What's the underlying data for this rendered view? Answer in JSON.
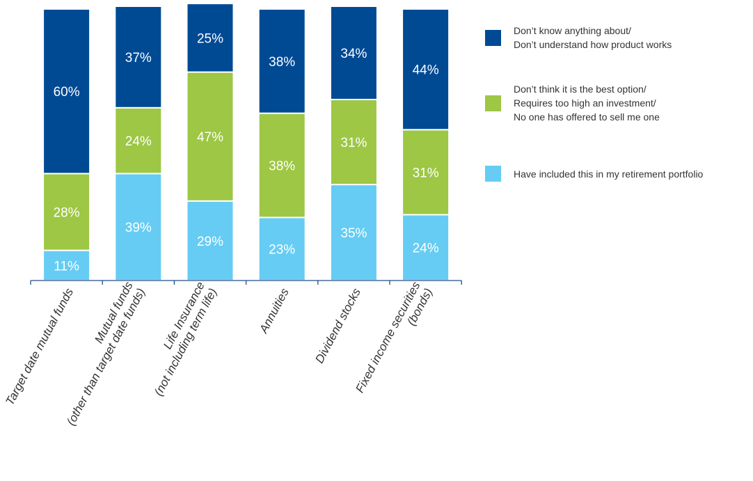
{
  "chart_data": {
    "type": "bar",
    "stacked": true,
    "orientation": "vertical",
    "categories": [
      "Target date mutual funds",
      "Mutual funds\n(other than target date funds)",
      "Life Insurance\n(not including term life)",
      "Annuities",
      "Dividend stocks",
      "Fixed income securities\n(bonds)"
    ],
    "series": [
      {
        "name": "Have included this in my retirement portfolio",
        "color": "#66ccf3",
        "values": [
          11,
          39,
          29,
          23,
          35,
          24
        ],
        "labels": [
          "11%",
          "39%",
          "29%",
          "23%",
          "35%",
          "24%"
        ]
      },
      {
        "name": "Don’t think it is the best option/\nRequires too high an investment/\nNo one has offered to sell me one",
        "color": "#9dc744",
        "values": [
          28,
          24,
          47,
          38,
          31,
          31
        ],
        "labels": [
          "28%",
          "24%",
          "47%",
          "38%",
          "31%",
          "31%"
        ]
      },
      {
        "name": "Don’t know anything about/\nDon’t understand how product works",
        "color": "#004a94",
        "values": [
          60,
          37,
          25,
          38,
          34,
          44
        ],
        "labels": [
          "60%",
          "37%",
          "25%",
          "38%",
          "34%",
          "44%"
        ]
      }
    ],
    "ylim": [
      0,
      100
    ],
    "legend_position": "right",
    "legend_order": [
      2,
      1,
      0
    ],
    "grid": false,
    "xlabel": "",
    "ylabel": ""
  }
}
